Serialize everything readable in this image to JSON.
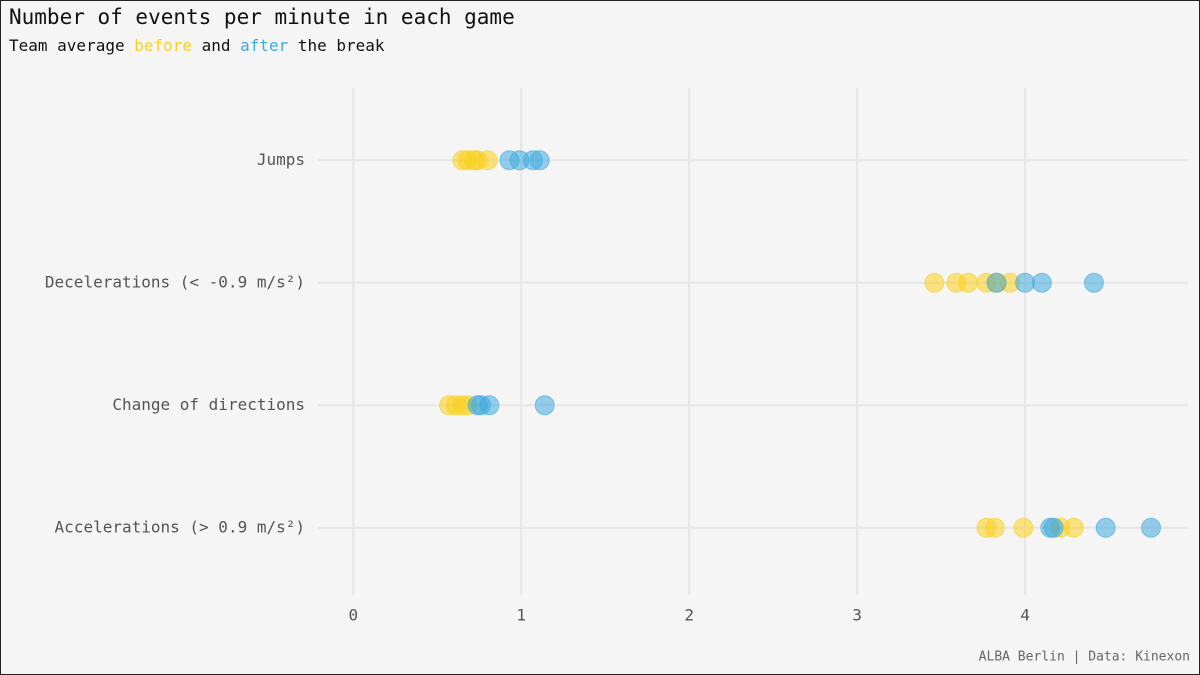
{
  "chart_data": {
    "type": "dotstrip",
    "title": "Number of events per minute in each game",
    "subtitle": [
      "Team average",
      "and",
      "the break"
    ],
    "caption": "ALBA Berlin | Data: Kinexon",
    "categories": [
      "Jumps",
      "Decelerations (< -0.9 m/s²)",
      "Change of directions",
      "Accelerations (> 0.9 m/s²)"
    ],
    "series": [
      {
        "name": "before",
        "color": "#f9d01b",
        "values": [
          [
            0.65,
            0.68,
            0.72,
            0.74,
            0.8
          ],
          [
            3.46,
            3.59,
            3.66,
            3.77,
            3.83,
            3.91
          ],
          [
            0.57,
            0.61,
            0.65,
            0.68
          ],
          [
            3.77,
            3.82,
            3.99,
            4.21,
            4.29
          ]
        ]
      },
      {
        "name": "after",
        "color": "#3fa9dc",
        "values": [
          [
            0.93,
            0.99,
            1.07,
            1.11
          ],
          [
            3.83,
            4.0,
            4.1,
            4.41
          ],
          [
            0.74,
            0.76,
            0.81,
            1.14
          ],
          [
            4.15,
            4.17,
            4.48,
            4.75
          ]
        ]
      }
    ],
    "xlim": [
      -0.21,
      4.97
    ],
    "xticks": [
      0,
      1,
      2,
      3,
      4
    ],
    "grid": true
  }
}
